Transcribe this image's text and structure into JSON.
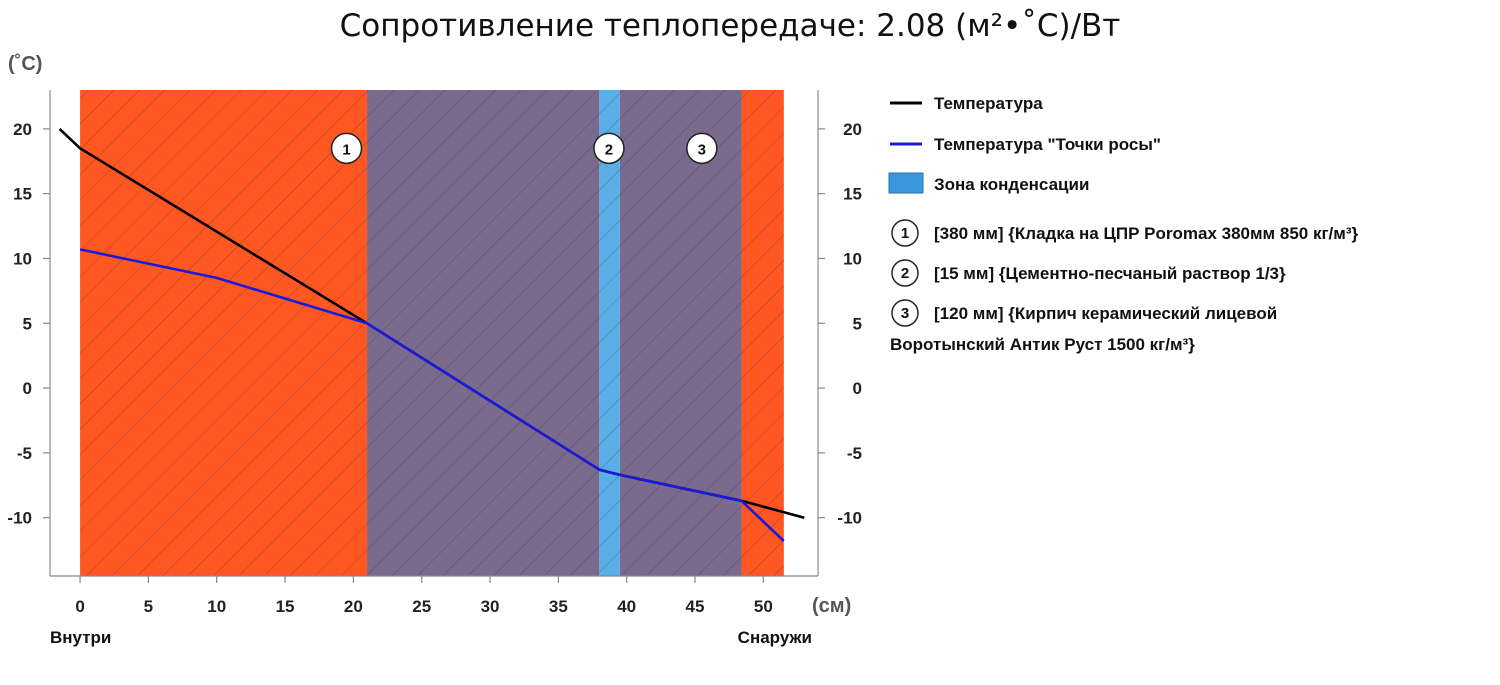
{
  "chart_data": {
    "type": "line",
    "title": "Сопротивление теплопередаче: 2.08 (м²•˚С)/Вт",
    "y_unit": "(˚С)",
    "x_unit": "(см)",
    "x_ticks": [
      0,
      5,
      10,
      15,
      20,
      25,
      30,
      35,
      40,
      45,
      50
    ],
    "y_ticks": [
      20,
      15,
      10,
      5,
      0,
      -5,
      -10
    ],
    "xlim": [
      -2.2,
      54
    ],
    "ylim": [
      -14.5,
      23
    ],
    "inside_label": "Внутри",
    "outside_label": "Снаружи",
    "layers": [
      {
        "marker": "1",
        "x0": 0,
        "x1": 21,
        "color": "#ff5722"
      },
      {
        "marker": "",
        "x0": 21,
        "x1": 38,
        "color": "#7a6a8e"
      },
      {
        "marker": "2",
        "x0": 38,
        "x1": 39.5,
        "color": "#5aaee8"
      },
      {
        "marker": "3",
        "x0": 39.5,
        "x1": 48.4,
        "color": "#7a6a8e"
      },
      {
        "marker": "",
        "x0": 48.4,
        "x1": 51.5,
        "color": "#ff5722"
      }
    ],
    "markers": [
      {
        "label": "1",
        "x": 19.5,
        "y": 18.5
      },
      {
        "label": "2",
        "x": 38.7,
        "y": 18.5
      },
      {
        "label": "3",
        "x": 45.5,
        "y": 18.5
      }
    ],
    "series": [
      {
        "name": "Температура",
        "color": "#000000",
        "points": [
          [
            -1.5,
            20
          ],
          [
            0,
            18.5
          ],
          [
            21,
            5
          ],
          [
            38,
            -6.3
          ],
          [
            39.5,
            -6.7
          ],
          [
            48.4,
            -8.7
          ],
          [
            53,
            -10
          ]
        ]
      },
      {
        "name": "Температура \"Точки росы\"",
        "color": "#1a1adb",
        "points": [
          [
            0,
            10.7
          ],
          [
            10,
            8.5
          ],
          [
            21,
            5
          ],
          [
            38,
            -6.3
          ],
          [
            39.5,
            -6.7
          ],
          [
            48.4,
            -8.7
          ],
          [
            51.5,
            -11.8
          ]
        ]
      }
    ],
    "legend": {
      "temperature": "Температура",
      "dew_point": "Температура \"Точки росы\"",
      "condensation": "Зона конденсации",
      "condensation_color": "#3a96dd",
      "layer_items": [
        {
          "num": "1",
          "text": "[380 мм] {Кладка на ЦПР Poromax 380мм  850 кг/м³}"
        },
        {
          "num": "2",
          "text": "[15 мм] {Цементно-песчаный раствор 1/3}"
        },
        {
          "num": "3",
          "text": "[120 мм] {Кирпич керамический лицевой"
        }
      ],
      "layer3_continuation": "Воротынский Антик Руст 1500 кг/м³}"
    }
  }
}
